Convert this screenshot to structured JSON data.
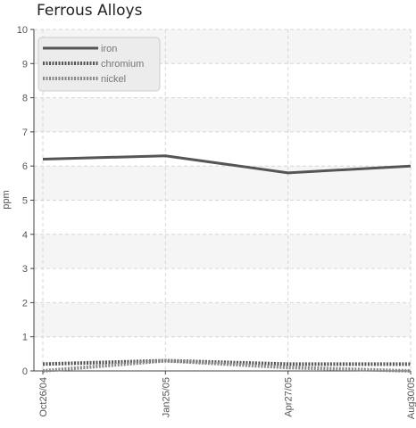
{
  "chart_data": {
    "type": "line",
    "title": "Ferrous Alloys",
    "xlabel": "",
    "ylabel": "ppm",
    "categories": [
      "Oct26/04",
      "Jan25/05",
      "Apr27/05",
      "Aug30/05"
    ],
    "ylim": [
      0,
      10
    ],
    "yticks": [
      0,
      1,
      2,
      3,
      4,
      5,
      6,
      7,
      8,
      9,
      10
    ],
    "grid": true,
    "legend_position": "top-left",
    "series": [
      {
        "name": "iron",
        "values": [
          6.2,
          6.3,
          5.8,
          6.0
        ],
        "color": "#555555",
        "style": "solid"
      },
      {
        "name": "chromium",
        "values": [
          0.2,
          0.3,
          0.2,
          0.2
        ],
        "color": "#555555",
        "style": "dotted"
      },
      {
        "name": "nickel",
        "values": [
          0.0,
          0.3,
          0.1,
          0.0
        ],
        "color": "#888888",
        "style": "dotted"
      }
    ]
  }
}
